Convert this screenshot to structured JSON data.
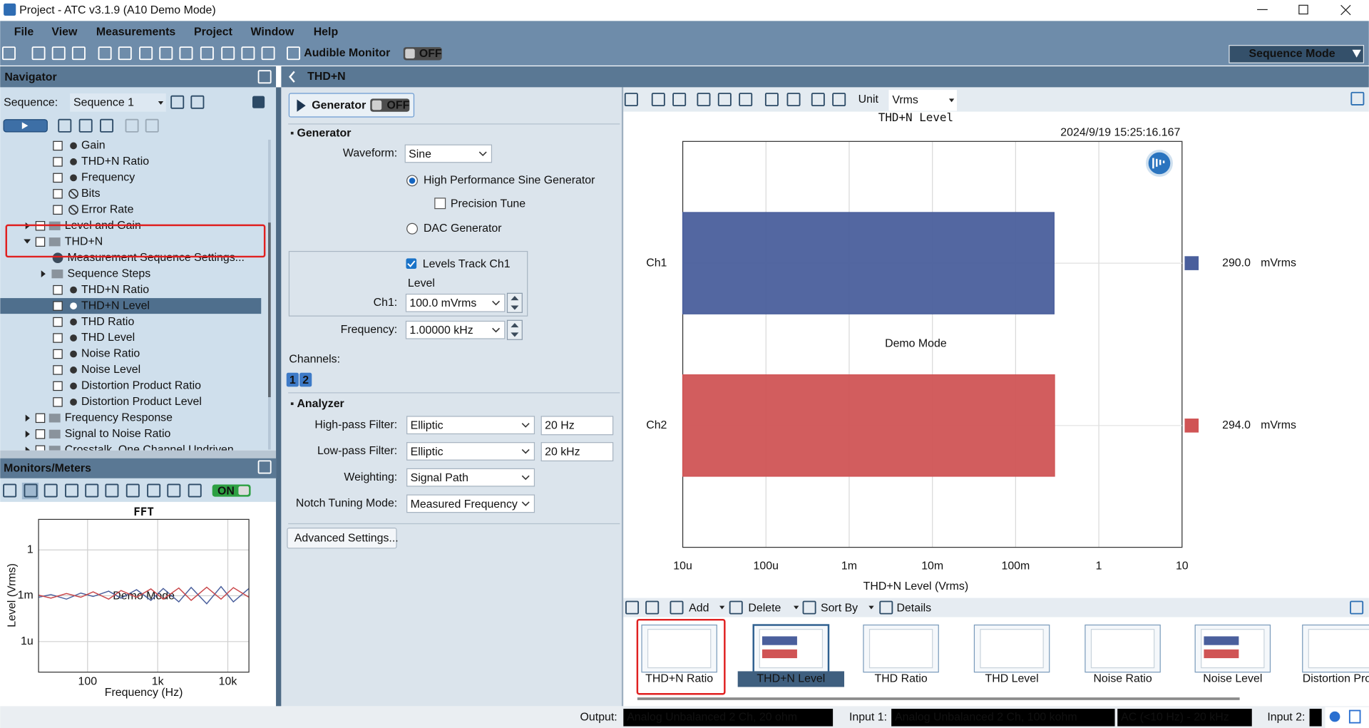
{
  "window": {
    "title": "Project - ATC v3.1.9 (A10 Demo Mode)"
  },
  "menu": [
    "File",
    "View",
    "Measurements",
    "Project",
    "Window",
    "Help"
  ],
  "toolbar": {
    "audible_monitor": "Audible Monitor",
    "off": "OFF",
    "sequence_mode": "Sequence Mode"
  },
  "navigator": {
    "title": "Navigator",
    "sequence_label": "Sequence:",
    "sequence": "Sequence 1",
    "tree": [
      "Gain",
      "THD+N Ratio",
      "Frequency",
      "Bits",
      "Error Rate",
      "Level and Gain",
      "THD+N",
      "Measurement Sequence Settings...",
      "Sequence Steps",
      "THD+N Ratio",
      "THD+N Level",
      "THD Ratio",
      "THD Level",
      "Noise Ratio",
      "Noise Level",
      "Distortion Product Ratio",
      "Distortion Product Level",
      "Frequency Response",
      "Signal to Noise Ratio",
      "Crosstalk, One Channel Undriven"
    ]
  },
  "monitors": {
    "title": "Monitors/Meters",
    "on": "ON"
  },
  "panel": {
    "title": "THD+N",
    "generator_button": "Generator",
    "generator_state": "OFF",
    "generator_section": "Generator",
    "waveform_label": "Waveform:",
    "waveform": "Sine",
    "option_hp": "High Performance Sine Generator",
    "precision_tune": "Precision Tune",
    "option_dac": "DAC Generator",
    "levels_track": "Levels Track Ch1",
    "level_label": "Level",
    "ch1_label": "Ch1:",
    "ch1": "100.0 mVrms",
    "frequency_label": "Frequency:",
    "frequency": "1.00000 kHz",
    "channels_label": "Channels:",
    "channel_buttons": [
      "1",
      "2"
    ],
    "analyzer_section": "Analyzer",
    "rows": [
      {
        "label": "High-pass Filter:",
        "value": "Elliptic",
        "extra": "20 Hz"
      },
      {
        "label": "Low-pass Filter:",
        "value": "Elliptic",
        "extra": "20 kHz"
      },
      {
        "label": "Weighting:",
        "value": "Signal Path"
      },
      {
        "label": "Notch Tuning Mode:",
        "value": "Measured Frequency"
      }
    ],
    "advanced": "Advanced Settings..."
  },
  "graph_toolbar": {
    "unit_label": "Unit",
    "unit": "Vrms"
  },
  "results": {
    "add": "Add",
    "delete": "Delete",
    "sort_by": "Sort By",
    "details": "Details",
    "thumbnails": [
      "THD+N Ratio",
      "THD+N Level",
      "THD Ratio",
      "THD Level",
      "Noise Ratio",
      "Noise Level",
      "Distortion Prod"
    ]
  },
  "status": {
    "output_label": "Output:",
    "output": "Analog Unbalanced 2 Ch, 20 ohm",
    "input1_label": "Input 1:",
    "input1": "Analog Unbalanced 2 Ch, 100 kohm",
    "input1_filter": "AC (<10 Hz) - 20 kHz",
    "input2_label": "Input 2:"
  },
  "chart_data": [
    {
      "type": "barh",
      "title": "THD+N Level",
      "timestamp": "2024/9/19 15:25:16.167",
      "watermark": "Demo Mode",
      "xlabel": "THD+N Level (Vrms)",
      "categories": [
        "Ch1",
        "Ch2"
      ],
      "values": [
        0.29,
        0.294
      ],
      "value_labels": [
        "290.0 mVrms",
        "294.0 mVrms"
      ],
      "colors": [
        "#4a5f9c",
        "#d05455"
      ],
      "xscale": "log",
      "xlim": [
        1e-05,
        10
      ],
      "xticks": [
        {
          "value": 1e-05,
          "label": "10u"
        },
        {
          "value": 0.0001,
          "label": "100u"
        },
        {
          "value": 0.001,
          "label": "1m"
        },
        {
          "value": 0.01,
          "label": "10m"
        },
        {
          "value": 0.1,
          "label": "100m"
        },
        1,
        10
      ],
      "grid": true
    },
    {
      "type": "line",
      "title": "FFT",
      "watermark": "Demo Mode",
      "xlabel": "Frequency (Hz)",
      "ylabel": "Level (Vrms)",
      "xscale": "log",
      "yscale": "log",
      "xlim": [
        20,
        20000
      ],
      "ylim": [
        1e-08,
        100
      ],
      "xticks": [
        100,
        {
          "value": 1000,
          "label": "1k"
        },
        {
          "value": 10000,
          "label": "10k"
        }
      ],
      "yticks": [
        1,
        {
          "value": 0.001,
          "label": "1m"
        },
        {
          "value": 1e-06,
          "label": "1u"
        }
      ],
      "grid": true,
      "x": [
        20,
        30,
        50,
        80,
        120,
        200,
        300,
        500,
        800,
        1200,
        2000,
        3000,
        5000,
        8000,
        12000,
        20000
      ],
      "series": [
        {
          "color": "#4a5f9c",
          "values": [
            0.0008,
            0.0012,
            0.0006,
            0.0015,
            0.0009,
            0.002,
            0.0007,
            0.0025,
            0.0005,
            0.003,
            0.0004,
            0.0035,
            0.0003,
            0.004,
            0.0004,
            0.003
          ]
        },
        {
          "color": "#c9474a",
          "values": [
            0.0011,
            0.0007,
            0.0014,
            0.0008,
            0.0018,
            0.0006,
            0.0022,
            0.0008,
            0.0028,
            0.0006,
            0.0032,
            0.0005,
            0.0036,
            0.0006,
            0.0034,
            0.0008
          ]
        }
      ]
    }
  ]
}
